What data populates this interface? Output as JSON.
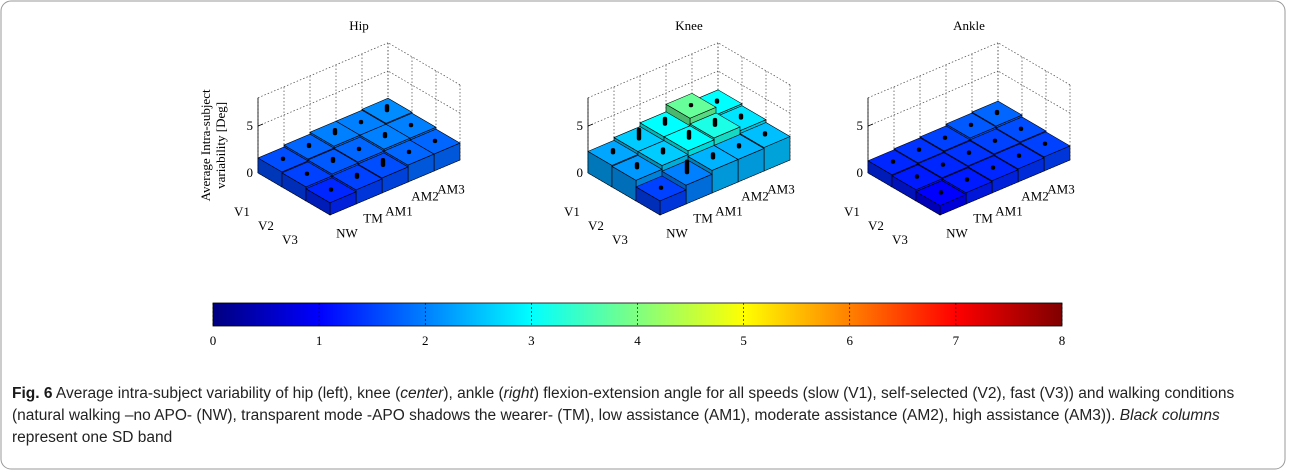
{
  "chart_data": [
    {
      "type": "bar3d",
      "title": "Hip",
      "zlabel": [
        "Average Intra-subject",
        "variability [Deg]"
      ],
      "rows": [
        "V1",
        "V2",
        "V3"
      ],
      "columns": [
        "NW",
        "TM",
        "AM1",
        "AM2",
        "AM3"
      ],
      "values": [
        [
          1.6,
          1.8,
          2.0,
          2.0,
          2.1
        ],
        [
          1.5,
          1.7,
          1.8,
          2.0,
          2.0
        ],
        [
          1.3,
          1.5,
          1.6,
          1.8,
          1.8
        ]
      ],
      "sd": [
        [
          0.3,
          0.4,
          0.6,
          0.3,
          0.7
        ],
        [
          0.3,
          0.5,
          0.3,
          0.5,
          0.3
        ],
        [
          0.3,
          0.5,
          0.8,
          0.3,
          0.3
        ]
      ],
      "zlim": [
        0,
        8
      ],
      "zticks": [
        0,
        5
      ]
    },
    {
      "type": "bar3d",
      "title": "Knee",
      "rows": [
        "V1",
        "V2",
        "V3"
      ],
      "columns": [
        "NW",
        "TM",
        "AM1",
        "AM2",
        "AM3"
      ],
      "values": [
        [
          2.3,
          2.6,
          3.0,
          3.8,
          3.0
        ],
        [
          2.2,
          2.6,
          3.0,
          3.2,
          2.8
        ],
        [
          1.5,
          2.0,
          2.4,
          2.4,
          2.5
        ]
      ],
      "sd": [
        [
          0.5,
          1.2,
          0.8,
          0.3,
          0.4
        ],
        [
          0.6,
          0.6,
          0.9,
          0.8,
          0.5
        ],
        [
          0.3,
          1.4,
          0.6,
          0.4,
          0.4
        ]
      ],
      "zlim": [
        0,
        8
      ],
      "zticks": [
        0,
        5
      ]
    },
    {
      "type": "bar3d",
      "title": "Ankle",
      "rows": [
        "V1",
        "V2",
        "V3"
      ],
      "columns": [
        "NW",
        "TM",
        "AM1",
        "AM2",
        "AM3"
      ],
      "values": [
        [
          1.3,
          1.4,
          1.5,
          1.7,
          1.8
        ],
        [
          1.2,
          1.3,
          1.4,
          1.5,
          1.6
        ],
        [
          1.0,
          1.2,
          1.3,
          1.4,
          1.5
        ]
      ],
      "sd": [
        [
          0.3,
          0.3,
          0.3,
          0.3,
          0.4
        ],
        [
          0.3,
          0.3,
          0.3,
          0.3,
          0.3
        ],
        [
          0.3,
          0.3,
          0.3,
          0.3,
          0.3
        ]
      ],
      "zlim": [
        0,
        8
      ],
      "zticks": [
        0,
        5
      ]
    },
    {
      "type": "colorbar",
      "colormap": "jet",
      "clim": [
        0,
        8
      ],
      "ticks": [
        0,
        1,
        2,
        3,
        4,
        5,
        6,
        7,
        8
      ]
    }
  ],
  "caption": {
    "label": "Fig. 6",
    "parts": [
      {
        "text": " Average intra-subject variability of hip (left), knee (",
        "italic": false
      },
      {
        "text": "center",
        "italic": true
      },
      {
        "text": "), ankle (",
        "italic": false
      },
      {
        "text": "right",
        "italic": true
      },
      {
        "text": ") flexion-extension angle for all speeds (slow (V1), self-selected (V2), fast (V3)) and walking conditions (natural walking –no APO- (NW), transparent mode -APO shadows the wearer- (TM), low assistance (AM1), moderate assistance (AM2), high assistance (AM3)). ",
        "italic": false
      },
      {
        "text": "Black columns",
        "italic": true
      },
      {
        "text": " represent one SD band",
        "italic": false
      }
    ]
  }
}
